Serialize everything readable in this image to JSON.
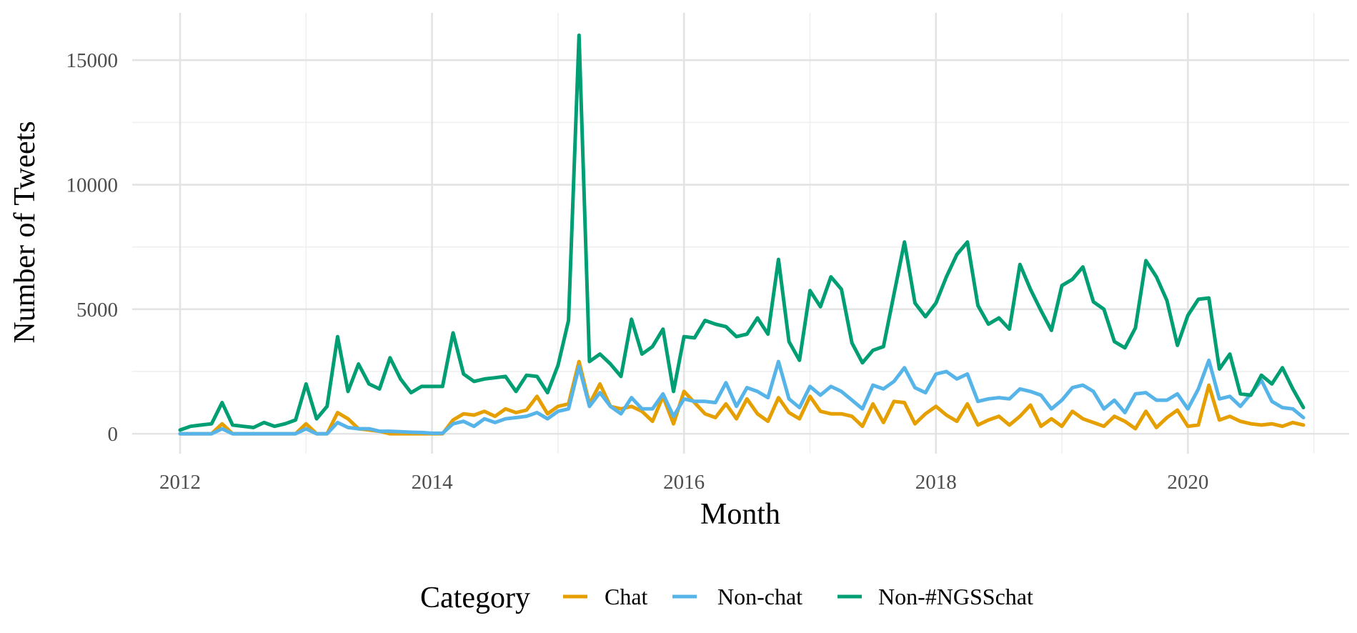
{
  "chart_data": {
    "type": "line",
    "title": "",
    "xlabel": "Month",
    "ylabel": "Number of Tweets",
    "x_ticks": [
      "2012",
      "2014",
      "2016",
      "2018",
      "2020"
    ],
    "y_ticks": [
      "0",
      "5000",
      "10000",
      "15000"
    ],
    "xlim": [
      2011.62,
      2021.28
    ],
    "ylim": [
      -800,
      16900
    ],
    "grid": true,
    "legend": {
      "title": "Category",
      "position": "bottom"
    },
    "x": [
      2012.0,
      2012.0833,
      2012.1667,
      2012.25,
      2012.3333,
      2012.4167,
      2012.5,
      2012.5833,
      2012.6667,
      2012.75,
      2012.8333,
      2012.9167,
      2013.0,
      2013.0833,
      2013.1667,
      2013.25,
      2013.3333,
      2013.4167,
      2013.5,
      2013.5833,
      2013.6667,
      2013.75,
      2013.8333,
      2013.9167,
      2014.0,
      2014.0833,
      2014.1667,
      2014.25,
      2014.3333,
      2014.4167,
      2014.5,
      2014.5833,
      2014.6667,
      2014.75,
      2014.8333,
      2014.9167,
      2015.0,
      2015.0833,
      2015.1667,
      2015.25,
      2015.3333,
      2015.4167,
      2015.5,
      2015.5833,
      2015.6667,
      2015.75,
      2015.8333,
      2015.9167,
      2016.0,
      2016.0833,
      2016.1667,
      2016.25,
      2016.3333,
      2016.4167,
      2016.5,
      2016.5833,
      2016.6667,
      2016.75,
      2016.8333,
      2016.9167,
      2017.0,
      2017.0833,
      2017.1667,
      2017.25,
      2017.3333,
      2017.4167,
      2017.5,
      2017.5833,
      2017.6667,
      2017.75,
      2017.8333,
      2017.9167,
      2018.0,
      2018.0833,
      2018.1667,
      2018.25,
      2018.3333,
      2018.4167,
      2018.5,
      2018.5833,
      2018.6667,
      2018.75,
      2018.8333,
      2018.9167,
      2019.0,
      2019.0833,
      2019.1667,
      2019.25,
      2019.3333,
      2019.4167,
      2019.5,
      2019.5833,
      2019.6667,
      2019.75,
      2019.8333,
      2019.9167,
      2020.0,
      2020.0833,
      2020.1667,
      2020.25,
      2020.3333,
      2020.4167,
      2020.5,
      2020.5833,
      2020.6667,
      2020.75,
      2020.8333,
      2020.9167
    ],
    "series": [
      {
        "name": "Chat",
        "color": "#E69F00",
        "values": [
          0,
          0,
          0,
          0,
          400,
          0,
          0,
          0,
          0,
          0,
          0,
          0,
          400,
          0,
          0,
          850,
          600,
          200,
          150,
          100,
          0,
          0,
          0,
          0,
          0,
          0,
          550,
          800,
          750,
          900,
          700,
          1000,
          850,
          950,
          1500,
          800,
          1100,
          1200,
          2900,
          1200,
          2000,
          1100,
          1000,
          1100,
          900,
          500,
          1500,
          400,
          1700,
          1250,
          800,
          650,
          1200,
          600,
          1400,
          800,
          500,
          1450,
          850,
          600,
          1500,
          900,
          800,
          800,
          700,
          300,
          1200,
          450,
          1300,
          1250,
          400,
          800,
          1100,
          750,
          500,
          1200,
          350,
          550,
          700,
          350,
          700,
          1150,
          300,
          600,
          300,
          900,
          600,
          450,
          300,
          700,
          500,
          200,
          900,
          250,
          650,
          950,
          300,
          350,
          1950,
          550,
          700,
          500,
          400,
          350,
          400,
          300,
          450,
          350
        ]
      },
      {
        "name": "Non-chat",
        "color": "#56B4E9",
        "values": [
          0,
          0,
          0,
          0,
          200,
          0,
          0,
          0,
          0,
          0,
          0,
          0,
          200,
          0,
          0,
          450,
          250,
          200,
          200,
          100,
          100,
          80,
          60,
          50,
          20,
          20,
          400,
          500,
          300,
          600,
          450,
          600,
          650,
          700,
          850,
          600,
          900,
          1000,
          2700,
          1100,
          1650,
          1100,
          800,
          1450,
          1000,
          1000,
          1600,
          700,
          1400,
          1300,
          1300,
          1250,
          2050,
          1100,
          1850,
          1700,
          1450,
          2900,
          1400,
          1050,
          1900,
          1550,
          1900,
          1700,
          1350,
          1000,
          1950,
          1800,
          2100,
          2650,
          1850,
          1650,
          2400,
          2500,
          2200,
          2400,
          1300,
          1400,
          1450,
          1400,
          1800,
          1700,
          1550,
          1000,
          1350,
          1850,
          1950,
          1700,
          1000,
          1350,
          850,
          1600,
          1650,
          1350,
          1350,
          1600,
          1000,
          1800,
          2950,
          1400,
          1500,
          1100,
          1600,
          2150,
          1300,
          1050,
          1000,
          650
        ]
      },
      {
        "name": "Non-#NGSSchat",
        "color": "#009E73",
        "values": [
          150,
          300,
          350,
          400,
          1250,
          350,
          300,
          250,
          450,
          300,
          400,
          550,
          2000,
          600,
          1100,
          3900,
          1700,
          2800,
          2000,
          1800,
          3050,
          2200,
          1650,
          1900,
          1900,
          1900,
          4050,
          2400,
          2100,
          2200,
          2250,
          2300,
          1700,
          2350,
          2300,
          1650,
          2750,
          4550,
          16000,
          2900,
          3200,
          2800,
          2300,
          4600,
          3200,
          3500,
          4200,
          1700,
          3900,
          3850,
          4550,
          4400,
          4300,
          3900,
          4000,
          4650,
          4000,
          7000,
          3700,
          2950,
          5750,
          5100,
          6300,
          5800,
          3650,
          2850,
          3350,
          3500,
          5600,
          7700,
          5250,
          4700,
          5250,
          6300,
          7200,
          7700,
          5150,
          4400,
          4650,
          4200,
          6800,
          5800,
          4950,
          4150,
          5950,
          6200,
          6700,
          5300,
          5000,
          3700,
          3450,
          4250,
          6950,
          6300,
          5350,
          3550,
          4750,
          5400,
          5450,
          2600,
          3200,
          1600,
          1550,
          2350,
          2000,
          2650,
          1800,
          1050
        ]
      }
    ]
  }
}
